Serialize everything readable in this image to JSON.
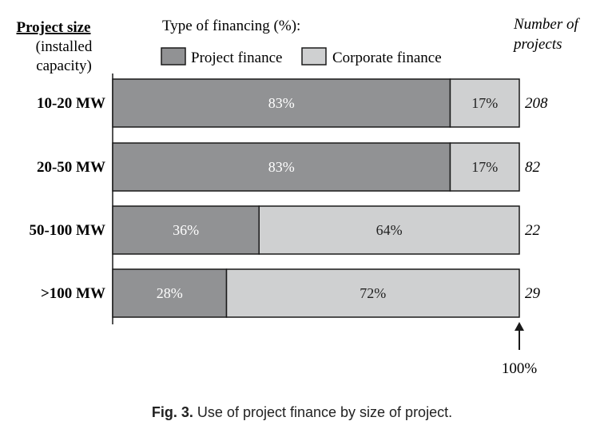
{
  "header": {
    "project_size_title": "Project size",
    "project_size_sub1": "(installed",
    "project_size_sub2": "capacity)",
    "financing_title": "Type of financing (%):",
    "count_title1": "Number of",
    "count_title2": "projects"
  },
  "annotation": {
    "arrow_label": "100%"
  },
  "caption": {
    "label": "Fig. 3.",
    "text": "Use of project finance by size of project."
  },
  "colors": {
    "project_finance": "#919294",
    "corporate_finance": "#cfd0d1",
    "outline": "#1a1a1a"
  },
  "chart_data": {
    "type": "bar",
    "orientation": "horizontal",
    "stacked": true,
    "categories": [
      "10-20 MW",
      "20-50 MW",
      "50-100 MW",
      ">100 MW"
    ],
    "series": [
      {
        "name": "Project finance",
        "values": [
          83,
          83,
          36,
          28
        ],
        "labels": [
          "83%",
          "83%",
          "36%",
          "28%"
        ],
        "color": "#919294"
      },
      {
        "name": "Corporate finance",
        "values": [
          17,
          17,
          64,
          72
        ],
        "labels": [
          "17%",
          "17%",
          "64%",
          "72%"
        ],
        "color": "#cfd0d1"
      }
    ],
    "number_of_projects": [
      "208",
      "82",
      "22",
      "29"
    ],
    "xlim": [
      0,
      100
    ],
    "legend_position": "top"
  }
}
